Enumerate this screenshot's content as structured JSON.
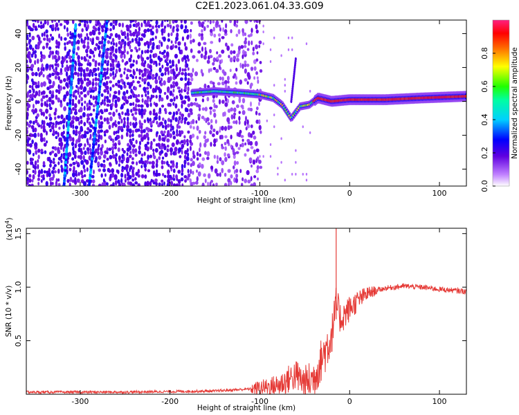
{
  "title": "C2E1.2023.061.04.33.G09",
  "colors": {
    "snr_line": "#e53935",
    "frame": "#000000",
    "background": "#ffffff"
  },
  "chart_data": [
    {
      "type": "heatmap",
      "xlabel": "Height of straight line (km)",
      "ylabel": "Frequency (Hz)",
      "xlim": [
        -360,
        130
      ],
      "ylim": [
        -50,
        48
      ],
      "xticks": [
        -300,
        -200,
        -100,
        0,
        100
      ],
      "xtick_labels": [
        "-300",
        "-200",
        "-100",
        "0",
        "100"
      ],
      "yticks": [
        -40,
        -20,
        0,
        20,
        40
      ],
      "ytick_labels": [
        "-40",
        "-20",
        "0",
        "20",
        "40"
      ],
      "colorbar": {
        "label": "Normalized spectral amplitude",
        "range": [
          0,
          1
        ],
        "ticks": [
          0.0,
          0.2,
          0.4,
          0.6,
          0.8
        ],
        "tick_labels": [
          "0.0",
          "0.2",
          "0.4",
          "0.6",
          "0.8"
        ],
        "colormap": "rainbow (white-violet-blue-cyan-green-yellow-red-pink)"
      },
      "features": {
        "main_signal_track": [
          [
            -175,
            5
          ],
          [
            -150,
            6
          ],
          [
            -120,
            5
          ],
          [
            -100,
            4
          ],
          [
            -85,
            2
          ],
          [
            -75,
            -2
          ],
          [
            -65,
            -10
          ],
          [
            -55,
            -3
          ],
          [
            -45,
            -2
          ],
          [
            -35,
            2
          ],
          [
            -20,
            0
          ],
          [
            0,
            1
          ],
          [
            40,
            1
          ],
          [
            80,
            2
          ],
          [
            130,
            3
          ]
        ],
        "diagonal_line_1": [
          [
            -318,
            -50
          ],
          [
            -305,
            45
          ]
        ],
        "diagonal_line_2": [
          [
            -290,
            -50
          ],
          [
            -270,
            48
          ]
        ],
        "faint_line": [
          [
            -65,
            0
          ],
          [
            -60,
            25
          ]
        ]
      }
    },
    {
      "type": "line",
      "xlabel": "Height of straight line (km)",
      "ylabel": "SNR (10 * v/v)",
      "y_multiplier_label": "(x10",
      "y_multiplier_exponent": "4",
      "y_multiplier_close": ")",
      "xlim": [
        -360,
        130
      ],
      "ylim": [
        0,
        1.55
      ],
      "xticks": [
        -300,
        -200,
        -100,
        0,
        100
      ],
      "xtick_labels": [
        "-300",
        "-200",
        "-100",
        "0",
        "100"
      ],
      "yticks": [
        0.5,
        1.0,
        1.5
      ],
      "ytick_labels": [
        "0.5",
        "1.0",
        "1.5"
      ],
      "series": [
        {
          "points": [
            [
              -360,
              0.02
            ],
            [
              -250,
              0.02
            ],
            [
              -150,
              0.03
            ],
            [
              -110,
              0.05
            ],
            [
              -80,
              0.08
            ],
            [
              -60,
              0.18
            ],
            [
              -50,
              0.1
            ],
            [
              -40,
              0.15
            ],
            [
              -30,
              0.35
            ],
            [
              -20,
              0.55
            ],
            [
              -15,
              0.85
            ],
            [
              -10,
              0.7
            ],
            [
              -5,
              0.75
            ],
            [
              0,
              0.8
            ],
            [
              10,
              0.88
            ],
            [
              20,
              0.94
            ],
            [
              30,
              0.97
            ],
            [
              40,
              0.99
            ],
            [
              60,
              1.01
            ],
            [
              80,
              1.0
            ],
            [
              100,
              0.98
            ],
            [
              130,
              0.96
            ]
          ],
          "spike": {
            "x": -15,
            "y": 1.55
          }
        }
      ]
    }
  ]
}
